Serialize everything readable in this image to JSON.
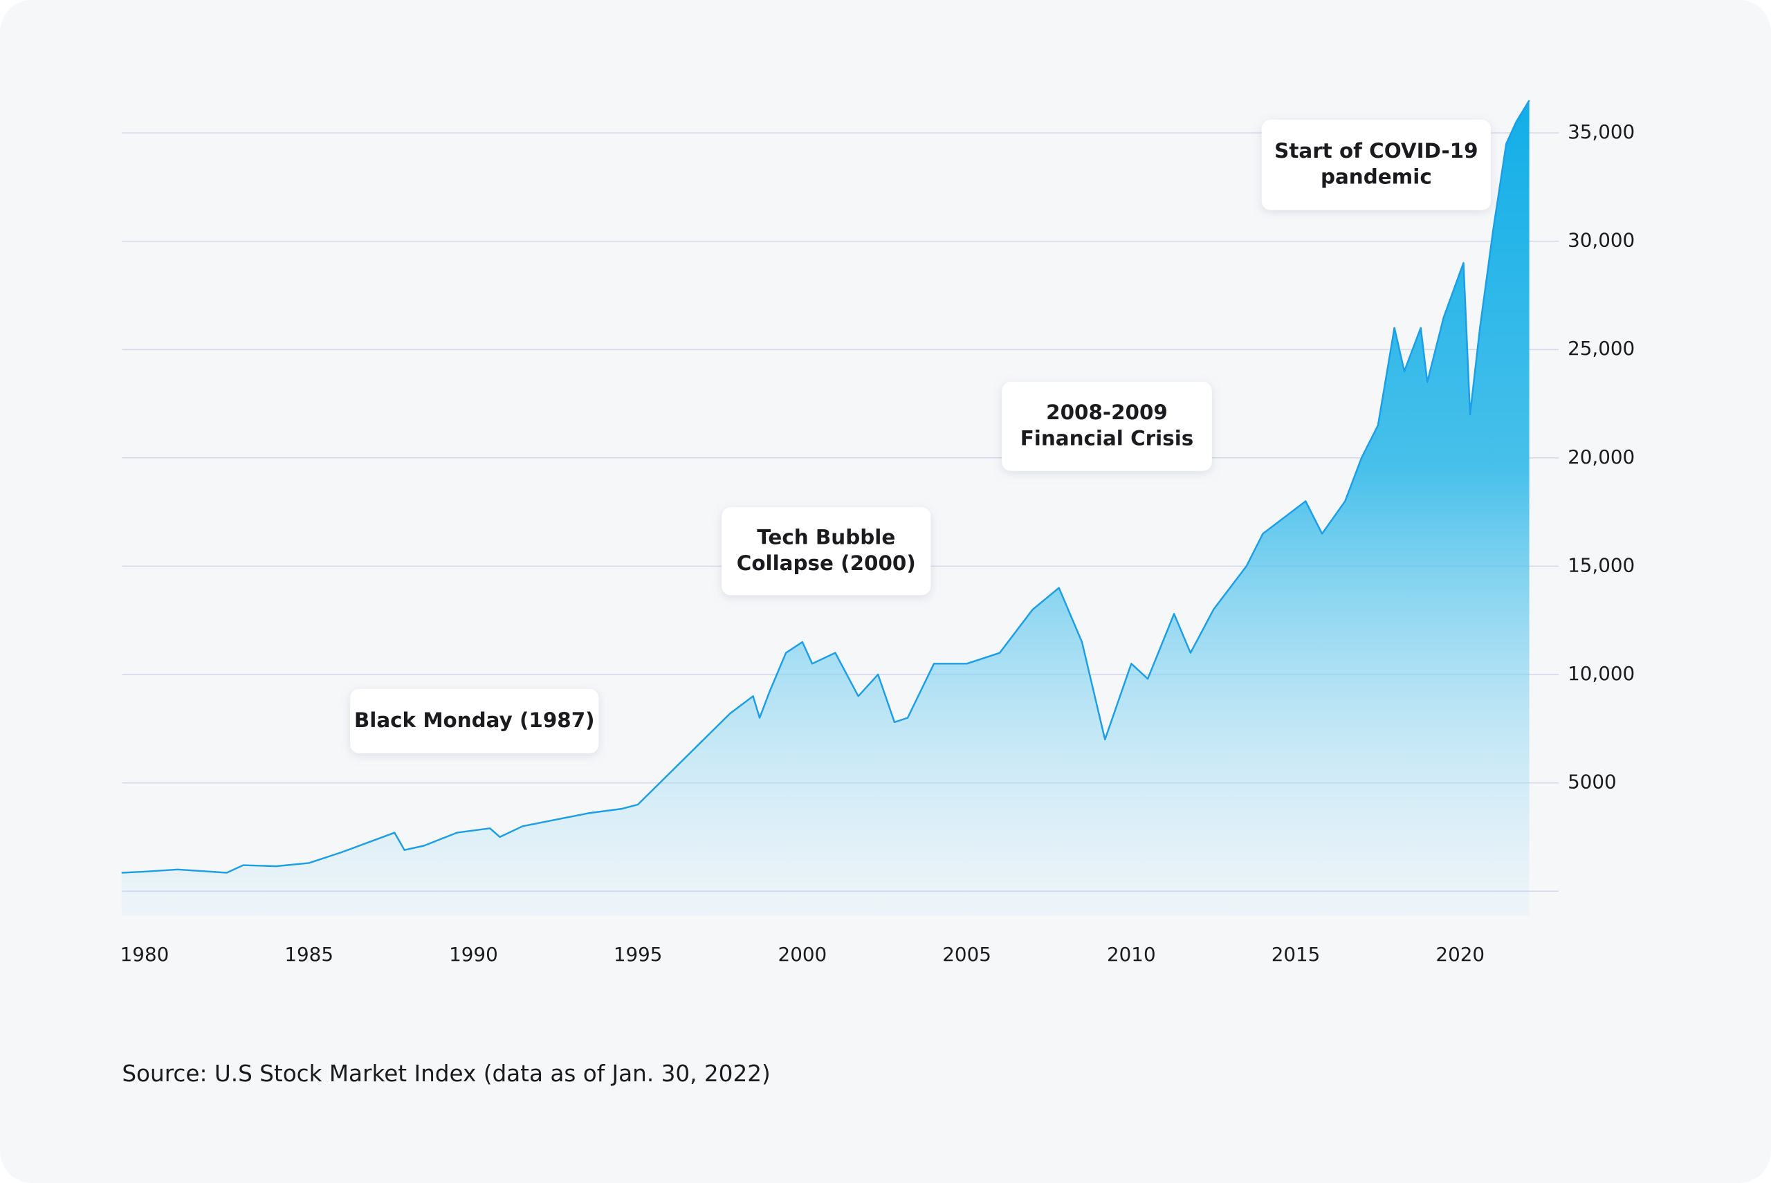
{
  "chart_data": {
    "type": "area",
    "x": [
      1979.3,
      1980,
      1981,
      1982.5,
      1983,
      1984,
      1985,
      1986,
      1987.6,
      1987.9,
      1988.5,
      1989.5,
      1990.5,
      1990.8,
      1991.5,
      1992.5,
      1993.5,
      1994.5,
      1995,
      1996,
      1997,
      1997.8,
      1998.5,
      1998.7,
      1999,
      1999.5,
      2000,
      2000.3,
      2001,
      2001.7,
      2002.3,
      2002.8,
      2003.2,
      2004,
      2005,
      2006,
      2007,
      2007.8,
      2008.5,
      2009.2,
      2010,
      2010.5,
      2011.3,
      2011.8,
      2012.5,
      2013.5,
      2014,
      2015.3,
      2015.8,
      2016.5,
      2017,
      2017.5,
      2018,
      2018.3,
      2018.8,
      2019,
      2019.5,
      2020.1,
      2020.3,
      2020.6,
      2021,
      2021.4,
      2021.7,
      2022.1
    ],
    "values": [
      850,
      900,
      1000,
      850,
      1200,
      1150,
      1300,
      1800,
      2700,
      1900,
      2100,
      2700,
      2900,
      2500,
      3000,
      3300,
      3600,
      3800,
      4000,
      5500,
      7000,
      8200,
      9000,
      8000,
      9200,
      11000,
      11500,
      10500,
      11000,
      9000,
      10000,
      7800,
      8000,
      10500,
      10500,
      11000,
      13000,
      14000,
      11500,
      7000,
      10500,
      9800,
      12800,
      11000,
      13000,
      15000,
      16500,
      18000,
      16500,
      18000,
      20000,
      21500,
      26000,
      24000,
      26000,
      23500,
      26500,
      29000,
      22000,
      26000,
      30500,
      34500,
      35500,
      36500
    ],
    "color": "#1a9ee8",
    "xlim": [
      1979.3,
      2022.1
    ],
    "xticks": [
      1980,
      1985,
      1990,
      1995,
      2000,
      2005,
      2010,
      2015,
      2020
    ],
    "ylim": [
      0,
      37000
    ],
    "yticks": [
      5000,
      {
        "value": 10000,
        "label": "10,000"
      },
      {
        "value": 15000,
        "label": "15,000"
      },
      {
        "value": 20000,
        "label": "20,000"
      },
      {
        "value": 25000,
        "label": "25,000"
      },
      {
        "value": 30000,
        "label": "30,000"
      },
      {
        "value": 35000,
        "label": "35,000"
      }
    ],
    "grid": true,
    "annotations": [
      {
        "lines": [
          "Black Monday (1987)"
        ]
      },
      {
        "lines": [
          "Tech Bubble",
          "Collapse (2000)"
        ]
      },
      {
        "lines": [
          "2008-2009",
          "Financial Crisis"
        ]
      },
      {
        "lines": [
          "Start of COVID-19",
          "pandemic"
        ]
      }
    ],
    "source": "Source: U.S Stock Market Index (data as of Jan. 30, 2022)"
  }
}
